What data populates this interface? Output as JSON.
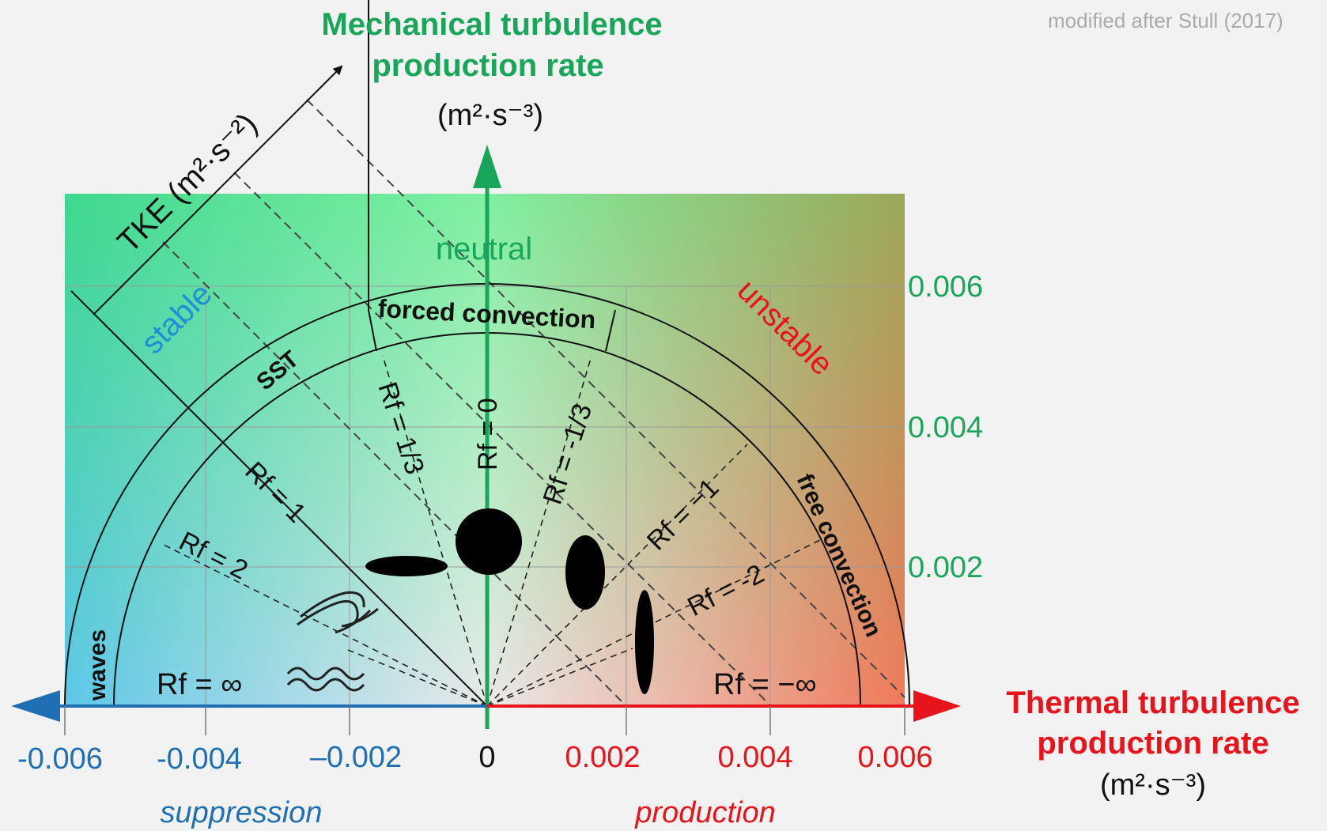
{
  "credit": "modified after Stull (2017)",
  "y_axis": {
    "title_line1": "Mechanical turbulence",
    "title_line2": "production rate",
    "unit": "(m²·s⁻³)",
    "ticks": [
      "0.006",
      "0.004",
      "0.002"
    ]
  },
  "x_axis": {
    "title_line1": "Thermal turbulence",
    "title_line2": "production rate",
    "unit": "(m²·s⁻³)",
    "ticks": [
      "-0.006",
      "-0.004",
      "–0.002",
      "0",
      "0.002",
      "0.004",
      "0.006"
    ],
    "left_caption": "suppression",
    "right_caption": "production"
  },
  "tke_label": "TKE (m²·s⁻²)",
  "regions": {
    "neutral": "neutral",
    "stable": "stable",
    "unstable": "unstable"
  },
  "bands": {
    "sst": "SST",
    "forced": "forced convection",
    "free": "free convection",
    "waves": "waves"
  },
  "rf_labels": {
    "rf0": "Rf = 0",
    "rf_1_3": "Rf = 1/3",
    "rf_m1_3": "Rf = -1/3",
    "rf1": "Rf = 1",
    "rf_m1": "Rf = −1",
    "rf2": "Rf = 2",
    "rf_m2": "Rf = -2",
    "rf_inf": "Rf = ∞",
    "rf_minf": "Rf = −∞"
  },
  "colors": {
    "green": "#1aa65a",
    "red": "#e8141c",
    "blue": "#1f6fb4",
    "black": "#111111"
  }
}
